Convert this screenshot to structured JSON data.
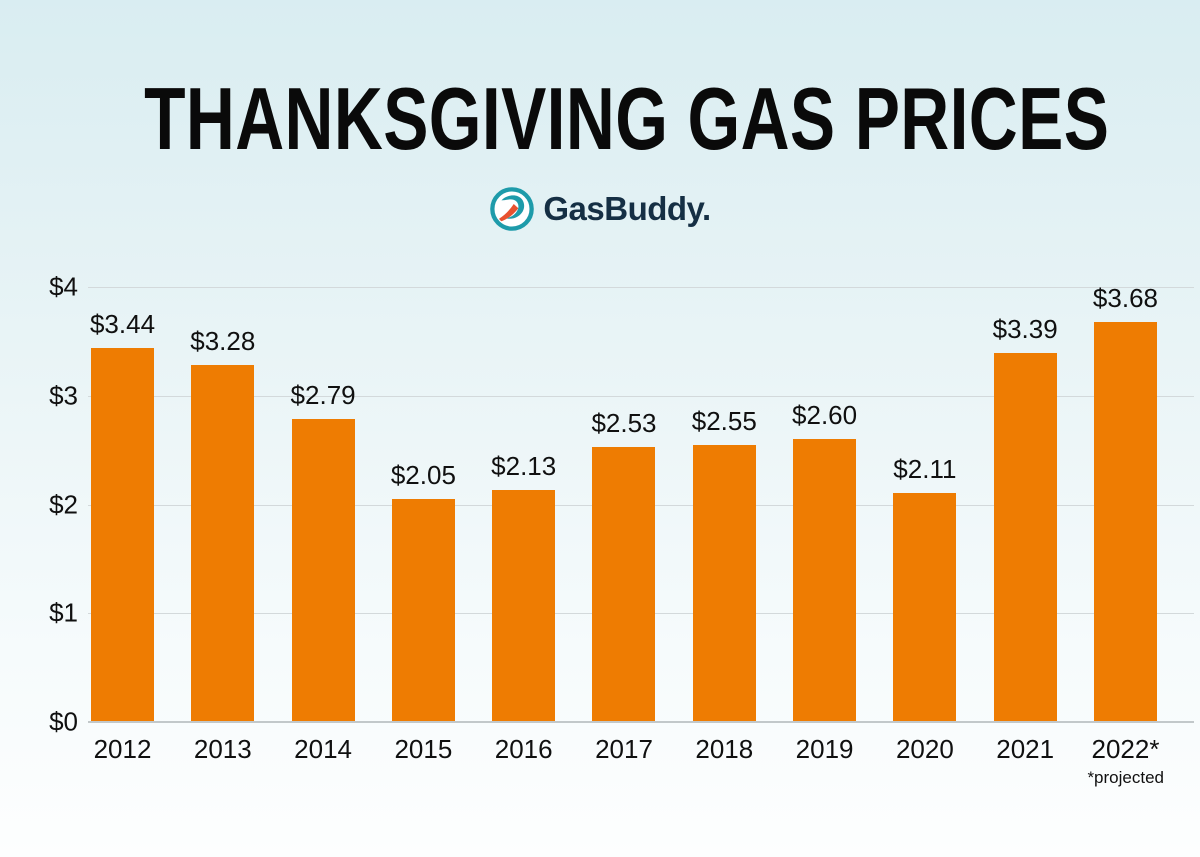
{
  "header": {
    "title": "THANKSGIVING GAS PRICES"
  },
  "logo": {
    "wordmark": "GasBuddy",
    "trademark_dot": ".",
    "icon": "gasbuddy-swoosh-road-icon",
    "ring_color": "#1E9BAA",
    "swoosh_color": "#1E9BAA",
    "road_color": "#E8512F",
    "text_color": "#152F44"
  },
  "chart_data": {
    "type": "bar",
    "title": "THANKSGIVING GAS PRICES",
    "categories": [
      "2012",
      "2013",
      "2014",
      "2015",
      "2016",
      "2017",
      "2018",
      "2019",
      "2020",
      "2021",
      "2022*"
    ],
    "values": [
      3.44,
      3.28,
      2.79,
      2.05,
      2.13,
      2.53,
      2.55,
      2.6,
      2.11,
      3.39,
      3.68
    ],
    "value_labels": [
      "$3.44",
      "$3.28",
      "$2.79",
      "$2.05",
      "$2.13",
      "$2.53",
      "$2.55",
      "$2.60",
      "$2.11",
      "$3.39",
      "$3.68"
    ],
    "xlabel": "",
    "ylabel": "",
    "ylim": [
      0,
      4
    ],
    "ytick_labels": [
      "$0",
      "$1",
      "$2",
      "$3",
      "$4"
    ],
    "grid": true,
    "legend": "none",
    "bar_color": "#EE7C02",
    "footnote": "*projected"
  }
}
